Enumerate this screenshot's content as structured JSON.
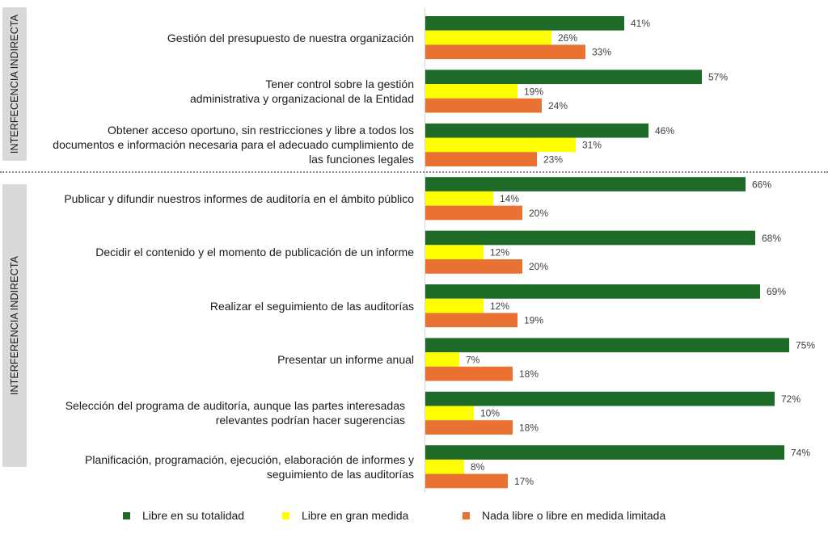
{
  "sections": [
    {
      "label": "INTERFECENCIA INDIRECTA"
    },
    {
      "label": "INTERFERENCIA INDIRECTA"
    }
  ],
  "colors": {
    "series_0": "#1e6b27",
    "series_1": "#ffff00",
    "series_2": "#e97232",
    "section_box": "#d9d9d9"
  },
  "legend": {
    "items": [
      {
        "label": "Libre en su totalidad"
      },
      {
        "label": "Libre en gran medida"
      },
      {
        "label": "Nada libre o libre en medida limitada"
      }
    ]
  },
  "chart_data": {
    "type": "bar",
    "orientation": "horizontal",
    "title": "",
    "xlabel": "",
    "ylabel": "",
    "xlim": [
      0,
      80
    ],
    "grid": false,
    "legend_position": "bottom",
    "groups": [
      {
        "section": "INTERFECENCIA INDIRECTA",
        "categories": [
          0,
          1,
          2
        ]
      },
      {
        "section": "INTERFERENCIA INDIRECTA",
        "categories": [
          3,
          4,
          5,
          6,
          7,
          8
        ]
      }
    ],
    "categories": [
      {
        "lines": [
          "Gestión del presupuesto de nuestra organización"
        ]
      },
      {
        "lines": [
          "Tener control sobre la gestión",
          "administrativa y organizacional de la Entidad"
        ]
      },
      {
        "lines": [
          "Obtener acceso oportuno, sin restricciones y libre a todos los",
          "documentos e información necesaria para el adecuado cumplimiento de",
          "las funciones legales"
        ]
      },
      {
        "lines": [
          "Publicar y difundir nuestros informes de auditoría en el ámbito público"
        ]
      },
      {
        "lines": [
          "Decidir el contenido y el momento de publicación de un informe"
        ]
      },
      {
        "lines": [
          "Realizar el seguimiento de las auditorías"
        ]
      },
      {
        "lines": [
          "Presentar un informe anual"
        ]
      },
      {
        "lines": [
          "Selección del programa de auditoría, aunque las partes interesadas",
          "relevantes podrían hacer sugerencias"
        ]
      },
      {
        "lines": [
          "Planificación, programación, ejecución, elaboración de informes y",
          "seguimiento de las auditorías"
        ]
      }
    ],
    "series": [
      {
        "name": "Libre en su totalidad",
        "values": [
          41,
          57,
          46,
          66,
          68,
          69,
          75,
          72,
          74
        ]
      },
      {
        "name": "Libre en gran medida",
        "values": [
          26,
          19,
          31,
          14,
          12,
          12,
          7,
          10,
          8
        ]
      },
      {
        "name": "Nada libre o libre en medida limitada",
        "values": [
          33,
          24,
          23,
          20,
          20,
          19,
          18,
          18,
          17
        ]
      }
    ],
    "value_suffix": "%"
  }
}
